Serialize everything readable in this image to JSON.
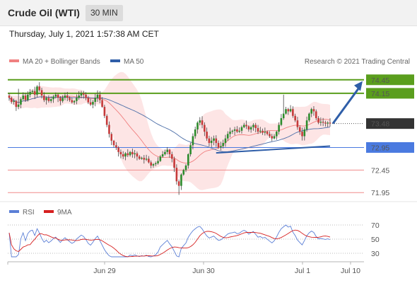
{
  "header": {
    "title": "Crude Oil (WTI)",
    "interval": "30 MIN"
  },
  "timestamp": "Thursday, July 1, 2021 1:57:38 AM CET",
  "legend": {
    "bollinger": "MA 20 + Bollinger Bands",
    "ma50": "MA 50",
    "credit": "Research © 2021 Trading Central",
    "rsi": "RSI",
    "rsi_ma": "9MA"
  },
  "colors": {
    "bull": "#2c8c2c",
    "bear": "#c53a3a",
    "ma20": "#f08080",
    "band": "#fde0e0",
    "ma50": "#4d6fa8",
    "resistance": "#5a9e1d",
    "current": "#333333",
    "pivot": "#4a7ae0",
    "support": "#f08a8a",
    "trendline": "#2f5ea8"
  },
  "chart_data": {
    "type": "candlestick",
    "y_range": [
      71.75,
      74.65
    ],
    "x_labels": [
      "Jun 29",
      "Jun 30",
      "Jul 1",
      "Jul 10"
    ],
    "levels": [
      {
        "value": 74.45,
        "label": "74.45",
        "kind": "resistance"
      },
      {
        "value": 74.15,
        "label": "74.15",
        "kind": "resistance"
      },
      {
        "value": 73.48,
        "label": "73.48",
        "kind": "current"
      },
      {
        "value": 72.95,
        "label": "72.95",
        "kind": "pivot"
      },
      {
        "value": 72.45,
        "label": "72.45",
        "kind": "support"
      },
      {
        "value": 71.95,
        "label": "71.95",
        "kind": "support"
      }
    ],
    "close": [
      74.05,
      73.96,
      73.98,
      73.85,
      73.9,
      74.02,
      74.1,
      74.0,
      74.12,
      74.18,
      74.2,
      74.12,
      74.3,
      74.22,
      74.1,
      74.0,
      74.05,
      73.98,
      74.02,
      74.08,
      74.12,
      74.05,
      73.98,
      74.05,
      74.1,
      74.05,
      74.0,
      73.95,
      73.98,
      74.05,
      74.1,
      74.15,
      74.12,
      74.05,
      73.95,
      73.9,
      73.96,
      74.05,
      74.12,
      74.0,
      73.85,
      73.65,
      73.45,
      73.25,
      73.1,
      73.0,
      72.95,
      72.85,
      72.8,
      72.75,
      72.82,
      72.78,
      72.85,
      72.8,
      72.82,
      72.75,
      72.7,
      72.72,
      72.68,
      72.7,
      72.62,
      72.55,
      72.58,
      72.6,
      72.65,
      72.75,
      72.8,
      72.85,
      72.9,
      72.8,
      72.7,
      72.5,
      72.2,
      72.1,
      72.35,
      72.45,
      72.55,
      72.8,
      73.0,
      73.2,
      73.35,
      73.5,
      73.55,
      73.45,
      73.3,
      73.15,
      73.05,
      73.1,
      73.15,
      73.05,
      72.95,
      72.98,
      73.05,
      73.15,
      73.25,
      73.3,
      73.32,
      73.35,
      73.3,
      73.32,
      73.4,
      73.45,
      73.42,
      73.35,
      73.4,
      73.45,
      73.38,
      73.3,
      73.32,
      73.28,
      73.3,
      73.25,
      73.2,
      73.15,
      73.2,
      73.3,
      73.45,
      73.6,
      73.7,
      73.8,
      73.75,
      73.8,
      73.65,
      73.55,
      73.4,
      73.3,
      73.2,
      73.35,
      73.55,
      73.7,
      73.8,
      73.75,
      73.6,
      73.5,
      73.52,
      73.5,
      73.48,
      73.5,
      73.48
    ],
    "rsi": {
      "ticks": [
        70,
        50,
        30
      ],
      "range": [
        20,
        80
      ]
    }
  }
}
